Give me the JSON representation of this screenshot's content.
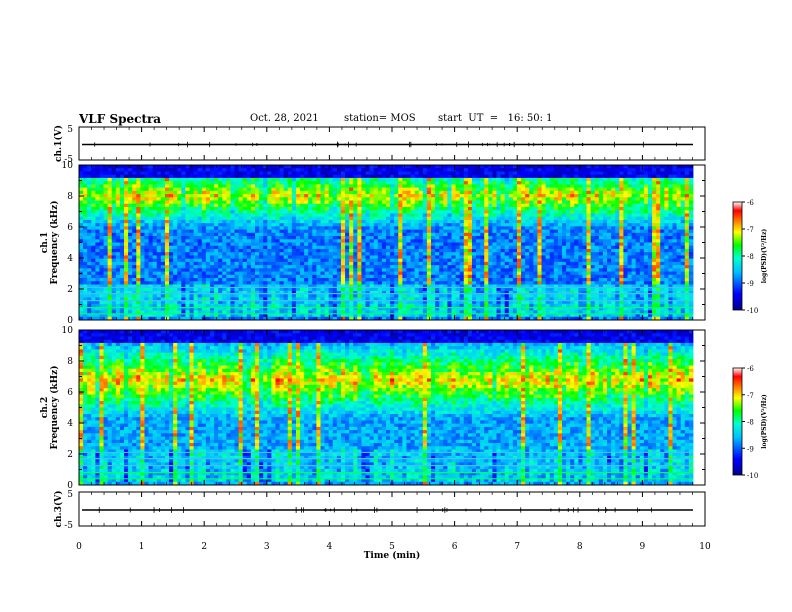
{
  "header": {
    "title": "VLF Spectra",
    "date": "Oct. 28, 2021",
    "station": "station= MOS",
    "start": "start  UT  =   16: 50: 1"
  },
  "chart_data": {
    "type": "heatmap",
    "xlabel": "Time (min)",
    "xlim": [
      0,
      10
    ],
    "x_ticks": [
      "0",
      "1",
      "2",
      "3",
      "4",
      "5",
      "6",
      "7",
      "8",
      "9",
      "10"
    ],
    "waveform_panels": [
      {
        "label": "ch.1(V)",
        "ylim": [
          -5,
          5
        ],
        "y_ticks": [
          "5",
          "-5"
        ]
      },
      {
        "label": "ch.3(V)",
        "ylim": [
          -5,
          5
        ],
        "y_ticks": [
          "5",
          "-5"
        ]
      }
    ],
    "spectrogram_panels": [
      {
        "channel": "ch.1",
        "ylabel": "Frequency (kHz)",
        "ylim": [
          0,
          10
        ],
        "y_ticks": [
          "0",
          "2",
          "4",
          "6",
          "8",
          "10"
        ],
        "intensity_peak_band_khz": [
          7,
          9
        ],
        "colorbar": {
          "label": "log(PSD)(V²/Hz)",
          "range": [
            -10,
            -6
          ],
          "ticks": [
            "-6",
            "-7",
            "-8",
            "-9",
            "-10"
          ]
        }
      },
      {
        "channel": "ch.2",
        "ylabel": "Frequency (kHz)",
        "ylim": [
          0,
          10
        ],
        "y_ticks": [
          "0",
          "2",
          "4",
          "6",
          "8",
          "10"
        ],
        "intensity_peak_band_khz": [
          5.5,
          8
        ],
        "colorbar": {
          "label": "log(PSD)(V²/Hz)",
          "range": [
            -10,
            -6
          ],
          "ticks": [
            "-6",
            "-7",
            "-8",
            "-9",
            "-10"
          ]
        }
      }
    ],
    "colormap": [
      "#00008b",
      "#0000ff",
      "#00bfff",
      "#00ffd0",
      "#00ff00",
      "#ffff00",
      "#ff8000",
      "#ff0000",
      "#ffffff"
    ],
    "grid": false
  }
}
